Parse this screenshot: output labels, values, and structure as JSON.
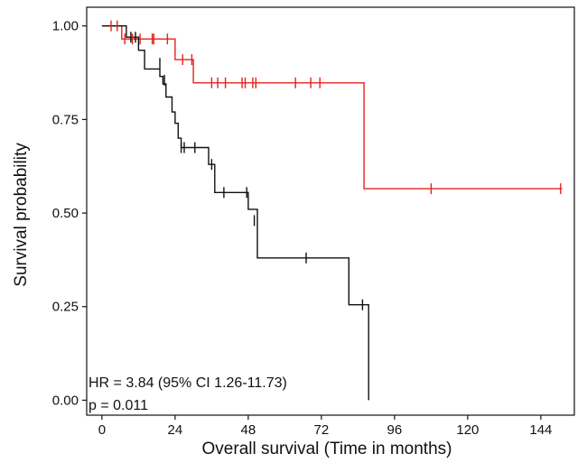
{
  "chart_data": {
    "type": "line",
    "subtype": "kaplan-meier",
    "xlabel": "Overall survival (Time in months)",
    "ylabel": "Survival probability",
    "xlim": [
      -5,
      155
    ],
    "ylim": [
      -0.04,
      1.05
    ],
    "xticks": [
      0,
      24,
      48,
      72,
      96,
      120,
      144
    ],
    "xtick_labels": [
      "0",
      "24",
      "48",
      "72",
      "96",
      "120",
      "144"
    ],
    "yticks": [
      0,
      0.25,
      0.5,
      0.75,
      1.0
    ],
    "ytick_labels": [
      "0.00",
      "0.25",
      "0.50",
      "0.75",
      "1.00"
    ],
    "grid": false,
    "legend": "none",
    "annotations": [
      "HR = 3.84 (95% CI 1.26-11.73)",
      "p = 0.011"
    ],
    "series": [
      {
        "color": "#e8211c",
        "steps": [
          [
            0,
            1.0
          ],
          [
            6.5,
            0.965
          ],
          [
            24,
            0.91
          ],
          [
            30,
            0.848
          ],
          [
            86,
            0.565
          ],
          [
            151,
            0.565
          ]
        ],
        "censors": [
          [
            3,
            1.0
          ],
          [
            5,
            1.0
          ],
          [
            7.5,
            0.965
          ],
          [
            10,
            0.965
          ],
          [
            12.5,
            0.965
          ],
          [
            16.5,
            0.965
          ],
          [
            17,
            0.965
          ],
          [
            21.5,
            0.965
          ],
          [
            26.5,
            0.91
          ],
          [
            29.5,
            0.91
          ],
          [
            36,
            0.848
          ],
          [
            38,
            0.848
          ],
          [
            40.5,
            0.848
          ],
          [
            46,
            0.848
          ],
          [
            47,
            0.848
          ],
          [
            49.5,
            0.848
          ],
          [
            50.5,
            0.848
          ],
          [
            63.5,
            0.848
          ],
          [
            68.5,
            0.848
          ],
          [
            71.5,
            0.848
          ],
          [
            108,
            0.565
          ],
          [
            150.5,
            0.565
          ]
        ]
      },
      {
        "color": "#111111",
        "steps": [
          [
            0,
            1.0
          ],
          [
            8,
            0.97
          ],
          [
            12,
            0.935
          ],
          [
            14,
            0.885
          ],
          [
            19,
            0.865
          ],
          [
            20,
            0.845
          ],
          [
            21,
            0.81
          ],
          [
            23,
            0.77
          ],
          [
            24,
            0.74
          ],
          [
            25,
            0.7
          ],
          [
            26,
            0.675
          ],
          [
            35,
            0.63
          ],
          [
            37,
            0.555
          ],
          [
            48,
            0.51
          ],
          [
            51,
            0.38
          ],
          [
            81,
            0.255
          ],
          [
            87.5,
            0.0
          ]
        ],
        "censors": [
          [
            9.5,
            0.97
          ],
          [
            11,
            0.97
          ],
          [
            19,
            0.9
          ],
          [
            20.5,
            0.855
          ],
          [
            26,
            0.675
          ],
          [
            27,
            0.675
          ],
          [
            30.5,
            0.675
          ],
          [
            36,
            0.63
          ],
          [
            40,
            0.555
          ],
          [
            47.5,
            0.555
          ],
          [
            50,
            0.48
          ],
          [
            67,
            0.38
          ],
          [
            85.5,
            0.255
          ]
        ]
      }
    ]
  }
}
